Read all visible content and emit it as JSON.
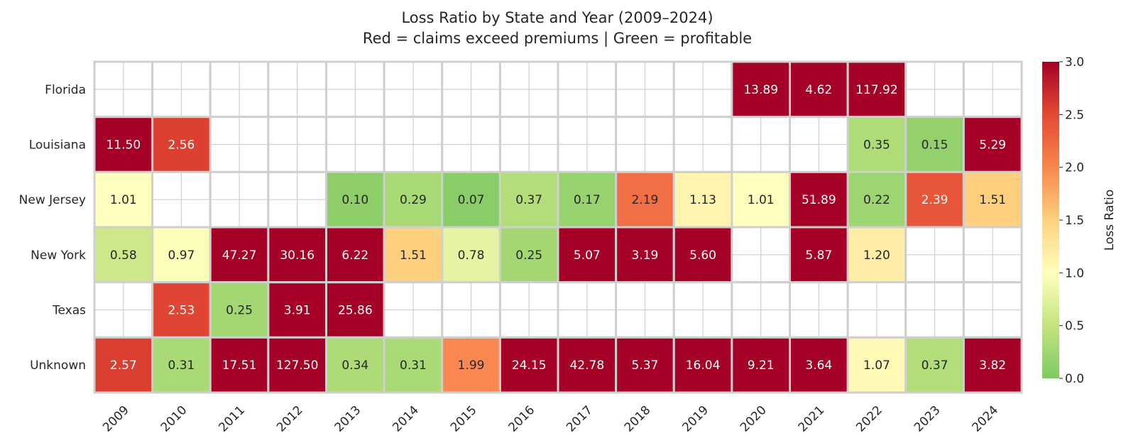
{
  "chart_data": {
    "type": "heatmap",
    "title_line1": "Loss Ratio by State and Year (2009–2024)",
    "title_line2": "Red = claims exceed premiums  |  Green = profitable",
    "x_categories": [
      "2009",
      "2010",
      "2011",
      "2012",
      "2013",
      "2014",
      "2015",
      "2016",
      "2017",
      "2018",
      "2019",
      "2020",
      "2021",
      "2022",
      "2023",
      "2024"
    ],
    "y_categories": [
      "Florida",
      "Louisiana",
      "New Jersey",
      "New York",
      "Texas",
      "Unknown"
    ],
    "values": [
      [
        null,
        null,
        null,
        null,
        null,
        null,
        null,
        null,
        null,
        null,
        null,
        13.89,
        4.62,
        117.92,
        null,
        null
      ],
      [
        11.5,
        2.56,
        null,
        null,
        null,
        null,
        null,
        null,
        null,
        null,
        null,
        null,
        null,
        0.35,
        0.15,
        5.29
      ],
      [
        1.01,
        null,
        null,
        null,
        0.1,
        0.29,
        0.07,
        0.37,
        0.17,
        2.19,
        1.13,
        1.01,
        51.89,
        0.22,
        2.39,
        1.51
      ],
      [
        0.58,
        0.97,
        47.27,
        30.16,
        6.22,
        1.51,
        0.78,
        0.25,
        5.07,
        3.19,
        5.6,
        null,
        5.87,
        1.2,
        null,
        null
      ],
      [
        null,
        2.53,
        0.25,
        3.91,
        25.86,
        null,
        null,
        null,
        null,
        null,
        null,
        null,
        null,
        null,
        null,
        null
      ],
      [
        2.57,
        0.31,
        17.51,
        127.5,
        0.34,
        0.31,
        1.99,
        24.15,
        42.78,
        5.37,
        16.04,
        9.21,
        3.64,
        1.07,
        0.37,
        3.82
      ]
    ],
    "labels": [
      [
        null,
        null,
        null,
        null,
        null,
        null,
        null,
        null,
        null,
        null,
        null,
        "13.89",
        "4.62",
        "117.92",
        null,
        null
      ],
      [
        "11.50",
        "2.56",
        null,
        null,
        null,
        null,
        null,
        null,
        null,
        null,
        null,
        null,
        null,
        "0.35",
        "0.15",
        "5.29"
      ],
      [
        "1.01",
        null,
        null,
        null,
        "0.10",
        "0.29",
        "0.07",
        "0.37",
        "0.17",
        "2.19",
        "1.13",
        "1.01",
        "51.89",
        "0.22",
        "2.39",
        "1.51"
      ],
      [
        "0.58",
        "0.97",
        "47.27",
        "30.16",
        "6.22",
        "1.51",
        "0.78",
        "0.25",
        "5.07",
        "3.19",
        "5.60",
        null,
        "5.87",
        "1.20",
        null,
        null
      ],
      [
        null,
        "2.53",
        "0.25",
        "3.91",
        "25.86",
        null,
        null,
        null,
        null,
        null,
        null,
        null,
        null,
        null,
        null,
        null
      ],
      [
        "2.57",
        "0.31",
        "17.51",
        "127.50",
        "0.34",
        "0.31",
        "1.99",
        "24.15",
        "42.78",
        "5.37",
        "16.04",
        "9.21",
        "3.64",
        "1.07",
        "0.37",
        "3.82"
      ]
    ],
    "colorbar": {
      "label": "Loss Ratio",
      "vmin": 0.0,
      "vmax": 3.0,
      "ticks": [
        "0.0",
        "0.5",
        "1.0",
        "1.5",
        "2.0",
        "2.5",
        "3.0"
      ],
      "colormap": "RdYlGn_r (truncated)",
      "stops": [
        "#7fc964",
        "#c4e47f",
        "#ffffbf",
        "#fdd180",
        "#f8864f",
        "#e34933",
        "#a50026"
      ]
    },
    "missing_cell_color": "#ffffff",
    "grid_line_color": "#cfcfcf"
  }
}
